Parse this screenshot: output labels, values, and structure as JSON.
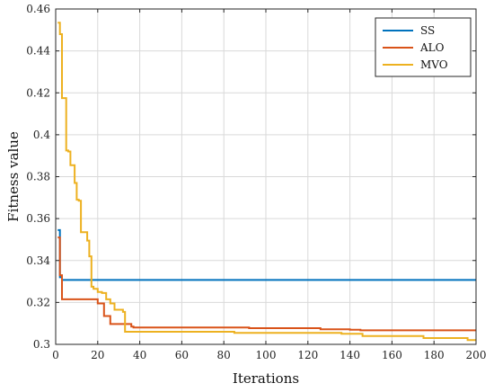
{
  "chart_data": {
    "type": "line",
    "title": "",
    "xlabel": "Iterations",
    "ylabel": "Fitness value",
    "xlim": [
      0,
      200
    ],
    "ylim": [
      0.3,
      0.46
    ],
    "xticks": [
      0,
      20,
      40,
      60,
      80,
      100,
      120,
      140,
      160,
      180,
      200
    ],
    "yticks": [
      0.3,
      0.32,
      0.34,
      0.36,
      0.38,
      0.4,
      0.42,
      0.44,
      0.46
    ],
    "xtick_labels": [
      "0",
      "20",
      "40",
      "60",
      "80",
      "100",
      "120",
      "140",
      "160",
      "180",
      "200"
    ],
    "ytick_labels": [
      "0.3",
      "0.32",
      "0.34",
      "0.36",
      "0.38",
      "0.4",
      "0.42",
      "0.44",
      "0.46"
    ],
    "grid": true,
    "legend_position": "top-right",
    "series": [
      {
        "name": "SS",
        "color": "#0072bd",
        "x": [
          1,
          2,
          3,
          200
        ],
        "y": [
          0.3545,
          0.332,
          0.3307,
          0.3307
        ]
      },
      {
        "name": "ALO",
        "color": "#d95319",
        "x": [
          1,
          2,
          3,
          19,
          20,
          22,
          23,
          25,
          26,
          34,
          36,
          37,
          90,
          92,
          125,
          126,
          140,
          145,
          200
        ],
        "y": [
          0.351,
          0.333,
          0.3215,
          0.3215,
          0.3195,
          0.3195,
          0.3135,
          0.3135,
          0.3097,
          0.3097,
          0.3085,
          0.308,
          0.308,
          0.3077,
          0.3077,
          0.3072,
          0.307,
          0.3067,
          0.3067
        ]
      },
      {
        "name": "MVO",
        "color": "#edb120",
        "x": [
          1,
          2,
          3,
          4,
          5,
          6,
          7,
          8,
          9,
          10,
          11,
          12,
          14,
          15,
          16,
          17,
          18,
          20,
          22,
          24,
          26,
          28,
          30,
          32,
          33,
          34,
          84,
          85,
          135,
          136,
          145,
          146,
          170,
          175,
          195,
          196,
          200
        ],
        "y": [
          0.4535,
          0.448,
          0.4175,
          0.4175,
          0.3925,
          0.392,
          0.3855,
          0.3855,
          0.377,
          0.369,
          0.3685,
          0.3535,
          0.3535,
          0.3495,
          0.342,
          0.3275,
          0.3265,
          0.325,
          0.3245,
          0.3215,
          0.3195,
          0.3165,
          0.3165,
          0.3155,
          0.306,
          0.306,
          0.306,
          0.3055,
          0.3055,
          0.305,
          0.305,
          0.304,
          0.304,
          0.303,
          0.303,
          0.302,
          0.302
        ]
      }
    ]
  }
}
